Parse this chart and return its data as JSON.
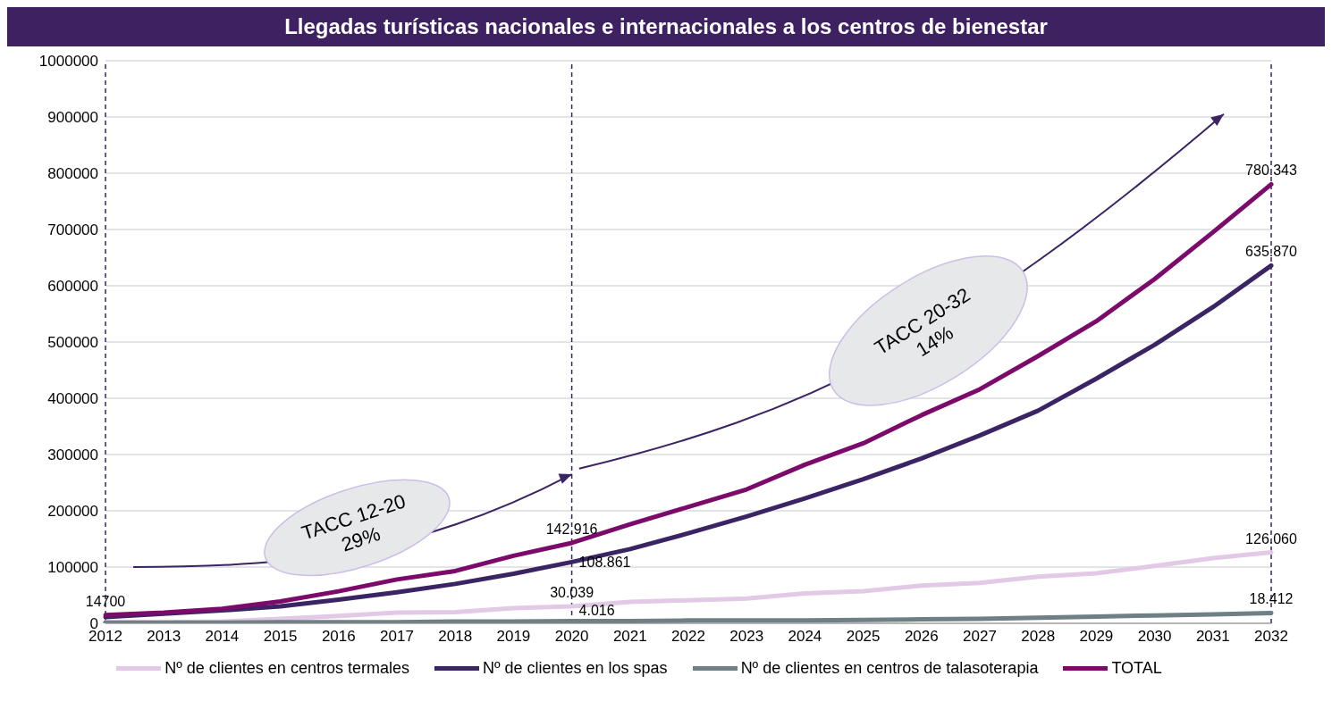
{
  "chart_data": {
    "type": "line",
    "title": "Llegadas turísticas nacionales e internacionales a los centros de bienestar",
    "categories": [
      "2012",
      "2013",
      "2014",
      "2015",
      "2016",
      "2017",
      "2018",
      "2019",
      "2020",
      "2021",
      "2022",
      "2023",
      "2024",
      "2025",
      "2026",
      "2027",
      "2028",
      "2029",
      "2030",
      "2031",
      "2032"
    ],
    "series": [
      {
        "name": "Nº de clientes en centros termales",
        "color": "#e2c9e6",
        "values": [
          2000,
          2000,
          3000,
          8000,
          13000,
          19000,
          20000,
          27000,
          30039,
          38000,
          41000,
          44000,
          53000,
          57000,
          67000,
          72000,
          83000,
          89000,
          102000,
          116000,
          126060
        ],
        "value_labels": [
          null,
          null,
          null,
          null,
          null,
          null,
          null,
          null,
          "30.039",
          null,
          null,
          null,
          null,
          null,
          null,
          null,
          null,
          null,
          null,
          null,
          "126.060"
        ]
      },
      {
        "name": "Nº de clientes en los spas",
        "color": "#3b2463",
        "values": [
          11000,
          17000,
          23000,
          30000,
          42000,
          55000,
          70000,
          88000,
          108861,
          132000,
          160000,
          190000,
          222000,
          256000,
          293000,
          334000,
          378000,
          435000,
          495000,
          562000,
          635870
        ],
        "value_labels": [
          null,
          null,
          null,
          null,
          null,
          null,
          null,
          null,
          "108.861",
          null,
          null,
          null,
          null,
          null,
          null,
          null,
          null,
          null,
          null,
          null,
          "635.870"
        ]
      },
      {
        "name": "Nº de clientes en centros de talasoterapia",
        "color": "#6e7f86",
        "values": [
          1000,
          1000,
          1000,
          2000,
          2000,
          2000,
          3000,
          3000,
          4016,
          4000,
          5000,
          5000,
          5000,
          6000,
          7000,
          8000,
          10000,
          12000,
          14000,
          16000,
          18412
        ],
        "value_labels": [
          null,
          null,
          null,
          null,
          null,
          null,
          null,
          null,
          "4.016",
          null,
          null,
          null,
          null,
          null,
          null,
          null,
          null,
          null,
          null,
          null,
          "18.412"
        ]
      },
      {
        "name": "TOTAL",
        "color": "#7b0a6b",
        "values": [
          14700,
          19000,
          26000,
          39000,
          57000,
          78000,
          93000,
          120000,
          142916,
          176000,
          207000,
          238000,
          282000,
          320000,
          370000,
          416000,
          475000,
          537000,
          612000,
          695000,
          780343
        ],
        "value_labels": [
          "14700",
          null,
          null,
          null,
          null,
          null,
          null,
          null,
          "142.916",
          null,
          null,
          null,
          null,
          null,
          null,
          null,
          null,
          null,
          null,
          null,
          "780.343"
        ]
      }
    ],
    "ylim": [
      0,
      1000000
    ],
    "yticks": [
      0,
      100000,
      200000,
      300000,
      400000,
      500000,
      600000,
      700000,
      800000,
      900000,
      1000000
    ],
    "grid": "y",
    "legend": "bottom",
    "marker": "none",
    "line_style": "solid",
    "ref_lines": [
      {
        "axis": "x",
        "value": "2012",
        "color": "#3b2463",
        "line_style": "dashed"
      },
      {
        "axis": "x",
        "value": "2020",
        "color": "#3b2463",
        "line_style": "dashed"
      },
      {
        "axis": "x",
        "value": "2032",
        "color": "#3b2463",
        "line_style": "dashed"
      }
    ],
    "annotations": [
      "TACC 12-20\n29%",
      "TACC 20-32\n14%"
    ]
  }
}
